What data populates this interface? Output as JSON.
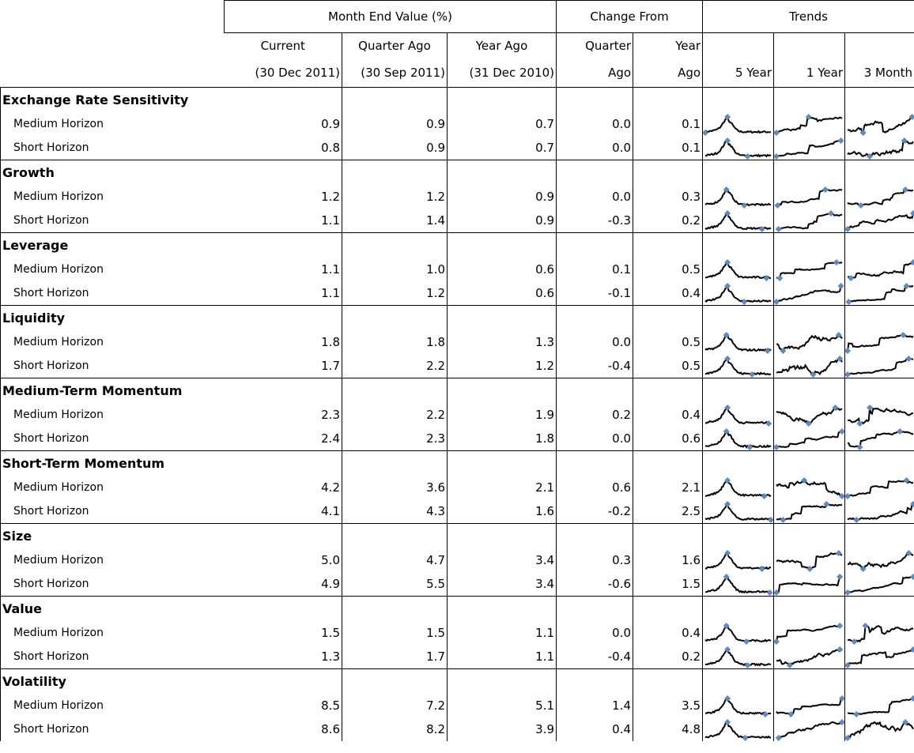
{
  "header": {
    "groups": [
      "Month End Value (%)",
      "Change From",
      "Trends"
    ],
    "columns": [
      [
        "Current",
        "(30 Dec 2011)"
      ],
      [
        "Quarter Ago",
        "(30 Sep 2011)"
      ],
      [
        "Year Ago",
        "(31 Dec 2010)"
      ],
      [
        "Quarter",
        "Ago"
      ],
      [
        "Year",
        "Ago"
      ],
      [
        "",
        "5 Year"
      ],
      [
        "",
        "1 Year"
      ],
      [
        "",
        "3 Month"
      ]
    ]
  },
  "table": {
    "groups": [
      {
        "name": "Exchange Rate Sensitivity",
        "rows": [
          {
            "label": "Medium Horizon",
            "values": [
              "0.9",
              "0.9",
              "0.7",
              "0.0",
              "0.1"
            ]
          },
          {
            "label": "Short Horizon",
            "values": [
              "0.8",
              "0.9",
              "0.7",
              "0.0",
              "0.1"
            ]
          }
        ]
      },
      {
        "name": "Growth",
        "rows": [
          {
            "label": "Medium Horizon",
            "values": [
              "1.2",
              "1.2",
              "0.9",
              "0.0",
              "0.3"
            ]
          },
          {
            "label": "Short Horizon",
            "values": [
              "1.1",
              "1.4",
              "0.9",
              "-0.3",
              "0.2"
            ]
          }
        ]
      },
      {
        "name": "Leverage",
        "rows": [
          {
            "label": "Medium Horizon",
            "values": [
              "1.1",
              "1.0",
              "0.6",
              "0.1",
              "0.5"
            ]
          },
          {
            "label": "Short Horizon",
            "values": [
              "1.1",
              "1.2",
              "0.6",
              "-0.1",
              "0.4"
            ]
          }
        ]
      },
      {
        "name": "Liquidity",
        "rows": [
          {
            "label": "Medium Horizon",
            "values": [
              "1.8",
              "1.8",
              "1.3",
              "0.0",
              "0.5"
            ]
          },
          {
            "label": "Short Horizon",
            "values": [
              "1.7",
              "2.2",
              "1.2",
              "-0.4",
              "0.5"
            ]
          }
        ]
      },
      {
        "name": "Medium-Term Momentum",
        "rows": [
          {
            "label": "Medium Horizon",
            "values": [
              "2.3",
              "2.2",
              "1.9",
              "0.2",
              "0.4"
            ]
          },
          {
            "label": "Short Horizon",
            "values": [
              "2.4",
              "2.3",
              "1.8",
              "0.0",
              "0.6"
            ]
          }
        ]
      },
      {
        "name": "Short-Term Momentum",
        "rows": [
          {
            "label": "Medium Horizon",
            "values": [
              "4.2",
              "3.6",
              "2.1",
              "0.6",
              "2.1"
            ]
          },
          {
            "label": "Short Horizon",
            "values": [
              "4.1",
              "4.3",
              "1.6",
              "-0.2",
              "2.5"
            ]
          }
        ]
      },
      {
        "name": "Size",
        "rows": [
          {
            "label": "Medium Horizon",
            "values": [
              "5.0",
              "4.7",
              "3.4",
              "0.3",
              "1.6"
            ]
          },
          {
            "label": "Short Horizon",
            "values": [
              "4.9",
              "5.5",
              "3.4",
              "-0.6",
              "1.5"
            ]
          }
        ]
      },
      {
        "name": "Value",
        "rows": [
          {
            "label": "Medium Horizon",
            "values": [
              "1.5",
              "1.5",
              "1.1",
              "0.0",
              "0.4"
            ]
          },
          {
            "label": "Short Horizon",
            "values": [
              "1.3",
              "1.7",
              "1.1",
              "-0.4",
              "0.2"
            ]
          }
        ]
      },
      {
        "name": "Volatility",
        "rows": [
          {
            "label": "Medium Horizon",
            "values": [
              "8.5",
              "7.2",
              "5.1",
              "1.4",
              "3.5"
            ]
          },
          {
            "label": "Short Horizon",
            "values": [
              "8.6",
              "8.2",
              "3.9",
              "0.4",
              "4.8"
            ]
          }
        ]
      }
    ]
  }
}
